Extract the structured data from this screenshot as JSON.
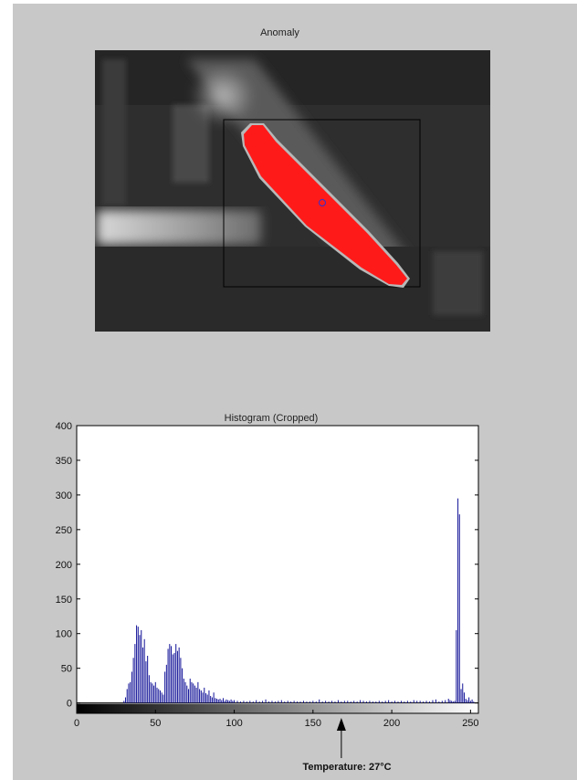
{
  "anomaly_panel": {
    "title": "Anomaly"
  },
  "colors": {
    "figure_bg": "#c8c8c8",
    "bar": "#1a1a9c",
    "anomaly": "#ff1a1a",
    "bbox": "#000000",
    "centroid": "#2a2acc"
  },
  "chart_data": {
    "type": "bar",
    "title": "Histogram (Cropped)",
    "xlabel": "",
    "ylabel": "",
    "xlim": [
      0,
      255
    ],
    "ylim": [
      -15,
      400
    ],
    "xticks": [
      0,
      50,
      100,
      150,
      200,
      250
    ],
    "yticks": [
      0,
      50,
      100,
      150,
      200,
      250,
      300,
      350,
      400
    ],
    "grid": false,
    "x": [
      30,
      31,
      32,
      33,
      34,
      35,
      36,
      37,
      38,
      39,
      40,
      41,
      42,
      43,
      44,
      45,
      46,
      47,
      48,
      49,
      50,
      51,
      52,
      53,
      54,
      55,
      56,
      57,
      58,
      59,
      60,
      61,
      62,
      63,
      64,
      65,
      66,
      67,
      68,
      69,
      70,
      71,
      72,
      73,
      74,
      75,
      76,
      77,
      78,
      79,
      80,
      81,
      82,
      83,
      84,
      85,
      86,
      87,
      88,
      89,
      90,
      91,
      92,
      93,
      94,
      95,
      96,
      97,
      98,
      99,
      100,
      102,
      104,
      106,
      108,
      110,
      112,
      114,
      116,
      118,
      120,
      122,
      124,
      126,
      128,
      130,
      132,
      134,
      136,
      138,
      140,
      142,
      144,
      146,
      148,
      150,
      152,
      154,
      156,
      158,
      160,
      162,
      164,
      166,
      168,
      170,
      172,
      174,
      176,
      178,
      180,
      182,
      184,
      186,
      188,
      190,
      192,
      194,
      196,
      198,
      200,
      202,
      204,
      206,
      208,
      210,
      212,
      214,
      216,
      218,
      220,
      222,
      224,
      226,
      228,
      230,
      232,
      234,
      236,
      237,
      238,
      239,
      240,
      241,
      242,
      243,
      244,
      245,
      246,
      247,
      248,
      249,
      250,
      251,
      252
    ],
    "values": [
      3,
      8,
      20,
      28,
      30,
      45,
      65,
      85,
      112,
      110,
      98,
      105,
      80,
      92,
      60,
      68,
      40,
      30,
      28,
      25,
      30,
      22,
      20,
      18,
      15,
      12,
      45,
      55,
      78,
      85,
      82,
      70,
      72,
      85,
      75,
      80,
      65,
      50,
      35,
      30,
      25,
      20,
      35,
      30,
      28,
      25,
      22,
      30,
      20,
      18,
      15,
      22,
      14,
      12,
      18,
      10,
      8,
      15,
      7,
      6,
      5,
      6,
      4,
      7,
      3,
      5,
      4,
      3,
      5,
      3,
      4,
      3,
      2,
      3,
      2,
      3,
      2,
      4,
      2,
      3,
      5,
      2,
      3,
      2,
      3,
      4,
      2,
      3,
      2,
      3,
      2,
      2,
      3,
      2,
      2,
      3,
      2,
      5,
      2,
      3,
      2,
      3,
      2,
      4,
      2,
      3,
      3,
      2,
      3,
      2,
      4,
      3,
      2,
      3,
      2,
      2,
      3,
      2,
      3,
      4,
      2,
      3,
      2,
      3,
      2,
      3,
      2,
      4,
      3,
      3,
      2,
      3,
      2,
      4,
      5,
      2,
      3,
      4,
      6,
      4,
      3,
      2,
      3,
      105,
      295,
      272,
      20,
      28,
      15,
      6,
      4,
      8,
      3,
      5,
      2
    ],
    "colorbar": {
      "min": 0,
      "max": 255,
      "orientation": "horizontal"
    }
  },
  "annotation": {
    "label": "Temperature: 27°C",
    "x": 168
  }
}
